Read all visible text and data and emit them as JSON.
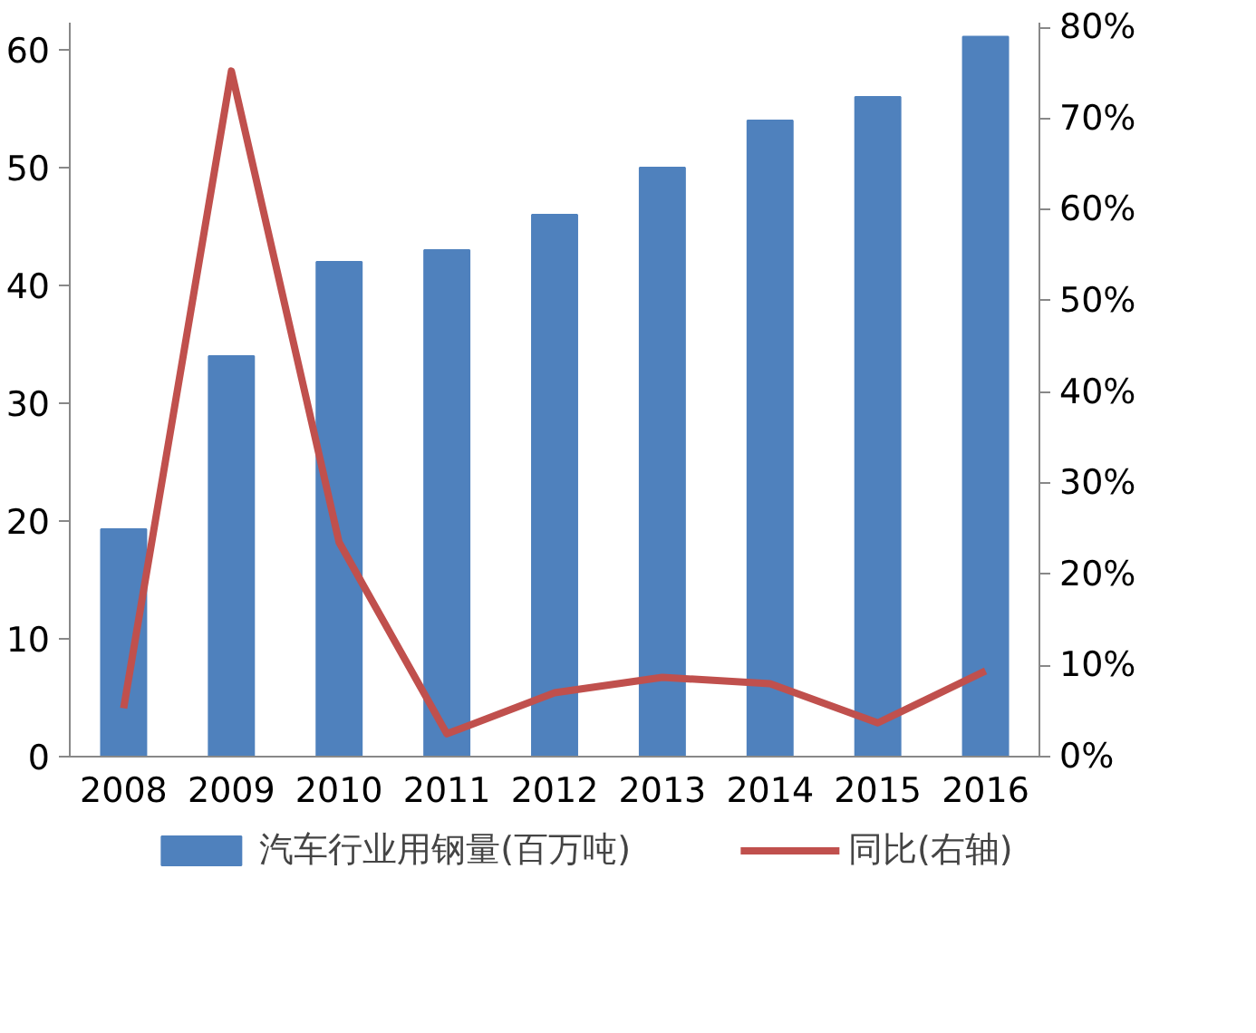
{
  "chart_data": {
    "type": "bar",
    "categories": [
      "2008",
      "2009",
      "2010",
      "2011",
      "2012",
      "2013",
      "2014",
      "2015",
      "2016"
    ],
    "series": [
      {
        "name": "汽车行业用钢量(百万吨)",
        "color": "#4f81bd",
        "values": [
          19.3,
          34,
          42,
          43,
          46,
          50,
          54,
          56,
          61.1
        ]
      },
      {
        "name": "同比(右轴)",
        "type": "line",
        "axis": "y2",
        "color": "#c0504d",
        "values": [
          5.3,
          75.2,
          23.5,
          2.5,
          7,
          8.7,
          8,
          3.7,
          9.4
        ]
      }
    ],
    "ylim": [
      0,
      62.3
    ],
    "yticks": [
      0,
      10,
      20,
      30,
      40,
      50,
      60
    ],
    "y2lim": [
      0,
      80.5
    ],
    "y2ticks": [
      {
        "value": 0,
        "label": "0%"
      },
      {
        "value": 10,
        "label": "10%"
      },
      {
        "value": 20,
        "label": "20%"
      },
      {
        "value": 30,
        "label": "30%"
      },
      {
        "value": 40,
        "label": "40%"
      },
      {
        "value": 50,
        "label": "50%"
      },
      {
        "value": 60,
        "label": "60%"
      },
      {
        "value": 70,
        "label": "70%"
      },
      {
        "value": 80,
        "label": "80%"
      }
    ],
    "grid": false,
    "legend": "bottom",
    "marker": "none",
    "line_style": "solid"
  }
}
